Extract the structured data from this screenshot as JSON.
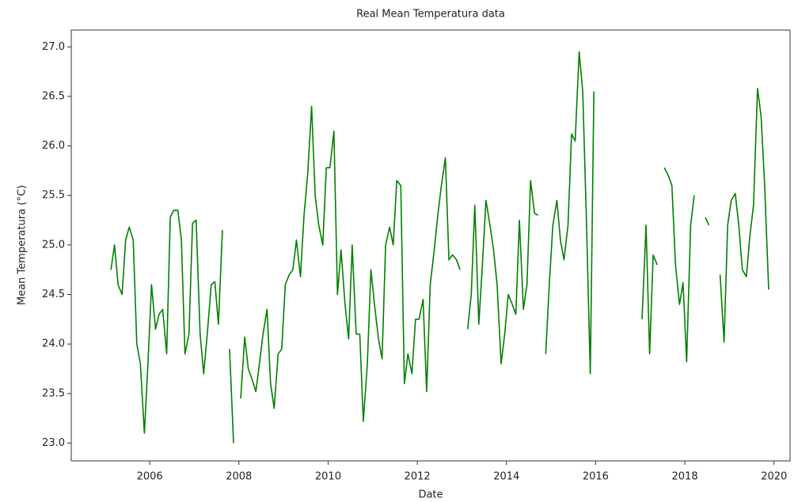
{
  "chart_data": {
    "type": "line",
    "title": "Real Mean Temperatura data",
    "x_label": "Date",
    "y_label": "Mean Temperatura (°C)",
    "xlim": [
      2004.24,
      2020.36
    ],
    "ylim": [
      22.82,
      27.17
    ],
    "xticks": [
      2006,
      2008,
      2010,
      2012,
      2014,
      2016,
      2018,
      2020
    ],
    "yticks": [
      {
        "value": 23,
        "label": "23.0"
      },
      23.5,
      {
        "value": 24,
        "label": "24.0"
      },
      24.5,
      {
        "value": 25,
        "label": "25.0"
      },
      25.5,
      {
        "value": 26,
        "label": "26.0"
      },
      26.5,
      {
        "value": 27,
        "label": "27.0"
      }
    ],
    "grid": false,
    "x": [
      2005.13,
      2005.21,
      2005.29,
      2005.38,
      2005.46,
      2005.54,
      2005.63,
      2005.71,
      2005.79,
      2005.88,
      2005.96,
      2006.04,
      2006.13,
      2006.21,
      2006.29,
      2006.38,
      2006.46,
      2006.54,
      2006.63,
      2006.71,
      2006.79,
      2006.88,
      2006.96,
      2007.04,
      2007.13,
      2007.21,
      2007.29,
      2007.38,
      2007.46,
      2007.54,
      2007.63,
      2007.71,
      2007.79,
      2007.88,
      2007.96,
      2008.04,
      2008.13,
      2008.21,
      2008.29,
      2008.38,
      2008.46,
      2008.54,
      2008.63,
      2008.71,
      2008.79,
      2008.88,
      2008.96,
      2009.04,
      2009.13,
      2009.21,
      2009.29,
      2009.38,
      2009.46,
      2009.54,
      2009.63,
      2009.71,
      2009.79,
      2009.88,
      2009.96,
      2010.04,
      2010.13,
      2010.21,
      2010.29,
      2010.38,
      2010.46,
      2010.54,
      2010.63,
      2010.71,
      2010.79,
      2010.88,
      2010.96,
      2011.04,
      2011.13,
      2011.21,
      2011.29,
      2011.38,
      2011.46,
      2011.54,
      2011.63,
      2011.71,
      2011.79,
      2011.88,
      2011.96,
      2012.04,
      2012.13,
      2012.21,
      2012.29,
      2012.38,
      2012.46,
      2012.54,
      2012.63,
      2012.71,
      2012.79,
      2012.88,
      2012.96,
      2013.04,
      2013.13,
      2013.21,
      2013.29,
      2013.38,
      2013.46,
      2013.54,
      2013.63,
      2013.71,
      2013.79,
      2013.88,
      2013.96,
      2014.04,
      2014.13,
      2014.21,
      2014.29,
      2014.38,
      2014.46,
      2014.54,
      2014.63,
      2014.71,
      2014.79,
      2014.88,
      2014.96,
      2015.04,
      2015.13,
      2015.21,
      2015.29,
      2015.38,
      2015.46,
      2015.54,
      2015.63,
      2015.71,
      2015.79,
      2015.88,
      2015.96,
      2016.04,
      2016.13,
      2016.21,
      2016.29,
      2016.38,
      2016.46,
      2016.54,
      2016.63,
      2016.71,
      2016.79,
      2016.88,
      2016.96,
      2017.04,
      2017.13,
      2017.21,
      2017.29,
      2017.38,
      2017.46,
      2017.54,
      2017.63,
      2017.71,
      2017.79,
      2017.88,
      2017.96,
      2018.04,
      2018.13,
      2018.21,
      2018.29,
      2018.38,
      2018.46,
      2018.54,
      2018.63,
      2018.71,
      2018.79,
      2018.88,
      2018.96,
      2019.04,
      2019.13,
      2019.21,
      2019.29,
      2019.38,
      2019.46,
      2019.54,
      2019.63,
      2019.71,
      2019.79,
      2019.88
    ],
    "series": [
      {
        "color": "#008000",
        "values": [
          24.75,
          25.0,
          24.6,
          24.5,
          25.05,
          25.18,
          25.05,
          24.0,
          23.8,
          23.1,
          23.8,
          24.6,
          24.15,
          24.3,
          24.35,
          23.9,
          25.28,
          25.35,
          25.35,
          25.05,
          23.9,
          24.1,
          25.22,
          25.25,
          24.1,
          23.7,
          24.1,
          24.6,
          24.63,
          24.2,
          25.15,
          null,
          23.95,
          23.0,
          null,
          23.45,
          24.07,
          23.75,
          23.65,
          23.52,
          23.8,
          24.1,
          24.35,
          23.6,
          23.35,
          23.9,
          23.95,
          24.6,
          24.7,
          24.75,
          25.05,
          24.68,
          25.3,
          25.7,
          26.4,
          25.5,
          25.2,
          25.0,
          25.78,
          25.78,
          26.15,
          24.5,
          24.95,
          24.4,
          24.05,
          25.0,
          24.1,
          24.1,
          23.22,
          23.8,
          24.75,
          24.4,
          24.05,
          23.85,
          25.0,
          25.18,
          25.0,
          25.65,
          25.6,
          23.6,
          23.9,
          23.7,
          24.25,
          24.25,
          24.45,
          23.52,
          24.6,
          24.95,
          25.3,
          25.6,
          25.88,
          24.85,
          24.9,
          24.85,
          24.75,
          null,
          24.15,
          24.5,
          25.4,
          24.2,
          24.8,
          25.45,
          25.2,
          24.95,
          24.6,
          23.8,
          24.1,
          24.5,
          24.4,
          24.3,
          25.25,
          24.35,
          24.6,
          25.65,
          25.32,
          25.3,
          null,
          23.9,
          24.6,
          25.2,
          25.45,
          25.05,
          24.85,
          25.2,
          26.12,
          26.05,
          26.95,
          26.55,
          25.3,
          23.7,
          26.55,
          null,
          null,
          null,
          null,
          null,
          null,
          null,
          null,
          null,
          null,
          null,
          null,
          24.25,
          25.2,
          23.9,
          24.9,
          24.8,
          null,
          25.78,
          25.7,
          25.6,
          24.8,
          24.4,
          24.62,
          23.82,
          25.2,
          25.5,
          null,
          null,
          25.28,
          25.2,
          null,
          null,
          24.7,
          24.02,
          25.2,
          25.45,
          25.52,
          25.2,
          24.75,
          24.68,
          25.1,
          25.4,
          26.58,
          26.3,
          25.6,
          24.55
        ]
      }
    ]
  }
}
